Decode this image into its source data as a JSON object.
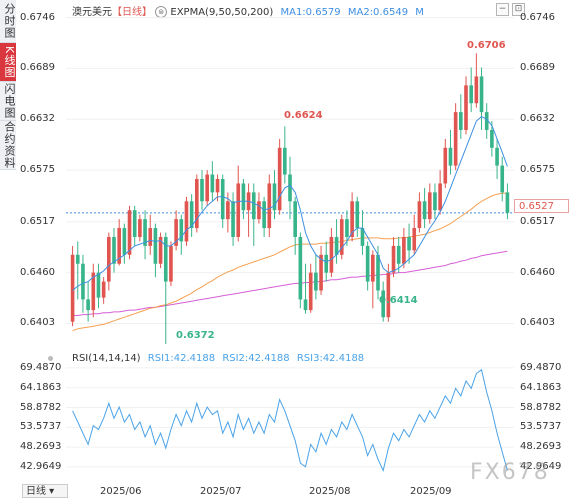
{
  "side_tabs": [
    "分时图",
    "K线图",
    "闪电图",
    "合约资料"
  ],
  "legend": {
    "symbol": "澳元美元",
    "period_tag": "【日线】",
    "ema_label": "EXPMA(9,50,50,200)",
    "ma1": "MA1:0.6579",
    "ma2": "MA2:0.6549",
    "m": "M",
    "rsi_label": "RSI(14,14,14)",
    "rsi1": "RSI1:42.4188",
    "rsi2": "RSI2:42.4188",
    "rsi3": "RSI3:42.4188"
  },
  "price_axis": [
    "0.6746",
    "0.6689",
    "0.6632",
    "0.6575",
    "0.6517",
    "0.6460",
    "0.6403"
  ],
  "rsi_axis": [
    "69.4870",
    "64.1863",
    "58.8782",
    "53.5737",
    "48.2693",
    "42.9649"
  ],
  "x_axis": [
    "2025/06",
    "2025/07",
    "2025/08",
    "2025/09"
  ],
  "current_price": "0.6527",
  "annotations": {
    "high": "0.6706",
    "mid_high": "0.6624",
    "low": "0.6372",
    "low2": "0.6414"
  },
  "period_button": "日线 ▾",
  "watermark": "FX678",
  "colors": {
    "up": "#e0554f",
    "down": "#38b48b",
    "ma1": "#3e8fe0",
    "ma2": "#f5a050",
    "ma3": "#d65fd6",
    "rsi": "#4aa3e8"
  },
  "chart_data": {
    "type": "candlestick",
    "ylim": [
      0.638,
      0.675
    ],
    "rsi_ylim": [
      40,
      70
    ],
    "candles": [
      [
        0.6405,
        0.648,
        0.64,
        0.649
      ],
      [
        0.648,
        0.647,
        0.643,
        0.6495
      ],
      [
        0.647,
        0.643,
        0.6415,
        0.648
      ],
      [
        0.643,
        0.6418,
        0.6405,
        0.645
      ],
      [
        0.6418,
        0.646,
        0.641,
        0.647
      ],
      [
        0.646,
        0.6432,
        0.642,
        0.647
      ],
      [
        0.6432,
        0.645,
        0.6425,
        0.6455
      ],
      [
        0.645,
        0.65,
        0.644,
        0.6505
      ],
      [
        0.65,
        0.647,
        0.646,
        0.651
      ],
      [
        0.647,
        0.651,
        0.6468,
        0.652
      ],
      [
        0.651,
        0.648,
        0.647,
        0.6515
      ],
      [
        0.648,
        0.653,
        0.6475,
        0.6535
      ],
      [
        0.653,
        0.65,
        0.649,
        0.6535
      ],
      [
        0.65,
        0.652,
        0.6495,
        0.6525
      ],
      [
        0.652,
        0.649,
        0.6475,
        0.653
      ],
      [
        0.649,
        0.651,
        0.648,
        0.6525
      ],
      [
        0.651,
        0.647,
        0.6455,
        0.6515
      ],
      [
        0.647,
        0.65,
        0.6465,
        0.6505
      ],
      [
        0.65,
        0.645,
        0.6372,
        0.6505
      ],
      [
        0.645,
        0.649,
        0.6445,
        0.6495
      ],
      [
        0.649,
        0.652,
        0.6485,
        0.653
      ],
      [
        0.652,
        0.6495,
        0.648,
        0.6525
      ],
      [
        0.6495,
        0.654,
        0.649,
        0.6545
      ],
      [
        0.654,
        0.651,
        0.65,
        0.6548
      ],
      [
        0.651,
        0.6565,
        0.6505,
        0.657
      ],
      [
        0.6565,
        0.654,
        0.653,
        0.6575
      ],
      [
        0.654,
        0.657,
        0.6535,
        0.6575
      ],
      [
        0.657,
        0.655,
        0.654,
        0.6585
      ],
      [
        0.655,
        0.6565,
        0.654,
        0.657
      ],
      [
        0.6565,
        0.652,
        0.651,
        0.657
      ],
      [
        0.652,
        0.654,
        0.6505,
        0.655
      ],
      [
        0.654,
        0.65,
        0.649,
        0.655
      ],
      [
        0.65,
        0.656,
        0.6495,
        0.658
      ],
      [
        0.656,
        0.653,
        0.652,
        0.6565
      ],
      [
        0.653,
        0.655,
        0.65,
        0.656
      ],
      [
        0.655,
        0.652,
        0.649,
        0.656
      ],
      [
        0.652,
        0.654,
        0.6515,
        0.655
      ],
      [
        0.654,
        0.651,
        0.65,
        0.6545
      ],
      [
        0.651,
        0.656,
        0.65,
        0.657
      ],
      [
        0.656,
        0.653,
        0.652,
        0.6575
      ],
      [
        0.653,
        0.66,
        0.6525,
        0.661
      ],
      [
        0.66,
        0.657,
        0.656,
        0.6624
      ],
      [
        0.657,
        0.654,
        0.652,
        0.659
      ],
      [
        0.654,
        0.65,
        0.648,
        0.6545
      ],
      [
        0.65,
        0.643,
        0.642,
        0.6505
      ],
      [
        0.643,
        0.6418,
        0.6414,
        0.647
      ],
      [
        0.6418,
        0.646,
        0.6415,
        0.647
      ],
      [
        0.646,
        0.644,
        0.643,
        0.648
      ],
      [
        0.644,
        0.648,
        0.6435,
        0.649
      ],
      [
        0.648,
        0.646,
        0.645,
        0.6495
      ],
      [
        0.646,
        0.65,
        0.6455,
        0.651
      ],
      [
        0.65,
        0.648,
        0.647,
        0.652
      ],
      [
        0.648,
        0.652,
        0.6475,
        0.6525
      ],
      [
        0.652,
        0.65,
        0.649,
        0.653
      ],
      [
        0.65,
        0.654,
        0.6495,
        0.655
      ],
      [
        0.654,
        0.651,
        0.65,
        0.6545
      ],
      [
        0.651,
        0.649,
        0.648,
        0.653
      ],
      [
        0.649,
        0.645,
        0.644,
        0.6495
      ],
      [
        0.645,
        0.648,
        0.642,
        0.6485
      ],
      [
        0.648,
        0.644,
        0.643,
        0.649
      ],
      [
        0.644,
        0.641,
        0.6405,
        0.645
      ],
      [
        0.641,
        0.646,
        0.6405,
        0.647
      ],
      [
        0.646,
        0.649,
        0.6455,
        0.65
      ],
      [
        0.649,
        0.647,
        0.646,
        0.65
      ],
      [
        0.647,
        0.65,
        0.6465,
        0.651
      ],
      [
        0.65,
        0.6485,
        0.647,
        0.6515
      ],
      [
        0.6485,
        0.651,
        0.648,
        0.6525
      ],
      [
        0.651,
        0.654,
        0.6505,
        0.655
      ],
      [
        0.654,
        0.652,
        0.651,
        0.6555
      ],
      [
        0.652,
        0.655,
        0.6515,
        0.656
      ],
      [
        0.655,
        0.653,
        0.652,
        0.656
      ],
      [
        0.653,
        0.656,
        0.6525,
        0.6575
      ],
      [
        0.656,
        0.66,
        0.6555,
        0.661
      ],
      [
        0.66,
        0.658,
        0.657,
        0.662
      ],
      [
        0.658,
        0.664,
        0.6575,
        0.665
      ],
      [
        0.664,
        0.662,
        0.661,
        0.666
      ],
      [
        0.662,
        0.667,
        0.6615,
        0.668
      ],
      [
        0.667,
        0.665,
        0.664,
        0.669
      ],
      [
        0.665,
        0.668,
        0.6645,
        0.6706
      ],
      [
        0.668,
        0.664,
        0.662,
        0.669
      ],
      [
        0.664,
        0.662,
        0.661,
        0.665
      ],
      [
        0.662,
        0.66,
        0.659,
        0.663
      ],
      [
        0.66,
        0.658,
        0.6565,
        0.661
      ],
      [
        0.658,
        0.655,
        0.654,
        0.659
      ],
      [
        0.655,
        0.6527,
        0.652,
        0.656
      ]
    ],
    "ma1": [
      0.644,
      0.6445,
      0.6448,
      0.645,
      0.6455,
      0.6458,
      0.6462,
      0.6468,
      0.6472,
      0.6476,
      0.648,
      0.6485,
      0.649,
      0.6492,
      0.6494,
      0.6496,
      0.6495,
      0.6496,
      0.649,
      0.649,
      0.6495,
      0.65,
      0.6508,
      0.6512,
      0.652,
      0.6528,
      0.6535,
      0.654,
      0.6545,
      0.6545,
      0.6543,
      0.6538,
      0.654,
      0.654,
      0.654,
      0.6538,
      0.6535,
      0.653,
      0.6532,
      0.6535,
      0.6545,
      0.6555,
      0.6558,
      0.655,
      0.653,
      0.6505,
      0.649,
      0.648,
      0.6475,
      0.6472,
      0.6475,
      0.648,
      0.6488,
      0.6495,
      0.6505,
      0.651,
      0.651,
      0.65,
      0.649,
      0.648,
      0.6465,
      0.646,
      0.6462,
      0.6465,
      0.647,
      0.6475,
      0.648,
      0.649,
      0.65,
      0.651,
      0.6518,
      0.6528,
      0.654,
      0.6555,
      0.657,
      0.6585,
      0.66,
      0.6615,
      0.663,
      0.6635,
      0.6632,
      0.6625,
      0.661,
      0.6595,
      0.6579
    ],
    "ma2": [
      0.6395,
      0.6397,
      0.6398,
      0.6399,
      0.64,
      0.6401,
      0.6402,
      0.6404,
      0.6406,
      0.6408,
      0.641,
      0.6412,
      0.6414,
      0.6416,
      0.6418,
      0.642,
      0.6421,
      0.6423,
      0.6424,
      0.6426,
      0.6428,
      0.6431,
      0.6434,
      0.6437,
      0.6441,
      0.6444,
      0.6448,
      0.6451,
      0.6455,
      0.6458,
      0.6461,
      0.6463,
      0.6466,
      0.6468,
      0.647,
      0.6472,
      0.6474,
      0.6476,
      0.6478,
      0.648,
      0.6483,
      0.6486,
      0.6489,
      0.6491,
      0.6492,
      0.6492,
      0.6492,
      0.6492,
      0.6493,
      0.6493,
      0.6494,
      0.6494,
      0.6495,
      0.6496,
      0.6497,
      0.6498,
      0.6499,
      0.6499,
      0.6499,
      0.6499,
      0.6498,
      0.6498,
      0.6498,
      0.6499,
      0.6499,
      0.65,
      0.6501,
      0.6502,
      0.6503,
      0.6505,
      0.6507,
      0.6509,
      0.6512,
      0.6515,
      0.6519,
      0.6523,
      0.6527,
      0.6531,
      0.6536,
      0.654,
      0.6543,
      0.6546,
      0.6548,
      0.6549,
      0.6549
    ],
    "ma3": [
      0.6412,
      0.6412,
      0.6413,
      0.6413,
      0.6414,
      0.6414,
      0.6415,
      0.6415,
      0.6416,
      0.6416,
      0.6417,
      0.6418,
      0.6418,
      0.6419,
      0.642,
      0.6421,
      0.6421,
      0.6422,
      0.6423,
      0.6424,
      0.6425,
      0.6426,
      0.6427,
      0.6428,
      0.6429,
      0.643,
      0.6431,
      0.6432,
      0.6433,
      0.6434,
      0.6435,
      0.6436,
      0.6437,
      0.6438,
      0.6439,
      0.644,
      0.6441,
      0.6442,
      0.6443,
      0.6444,
      0.6445,
      0.6446,
      0.6447,
      0.6448,
      0.6448,
      0.6449,
      0.6449,
      0.645,
      0.645,
      0.6451,
      0.6452,
      0.6452,
      0.6453,
      0.6454,
      0.6455,
      0.6455,
      0.6456,
      0.6456,
      0.6457,
      0.6457,
      0.6458,
      0.6458,
      0.6459,
      0.646,
      0.646,
      0.6461,
      0.6462,
      0.6463,
      0.6464,
      0.6465,
      0.6466,
      0.6467,
      0.6468,
      0.647,
      0.6471,
      0.6473,
      0.6474,
      0.6476,
      0.6477,
      0.6479,
      0.648,
      0.6481,
      0.6482,
      0.6483,
      0.6484
    ],
    "rsi": [
      58,
      55,
      52,
      49,
      54,
      53,
      56,
      60,
      56,
      59,
      55,
      57,
      53,
      55,
      51,
      54,
      49,
      52,
      48,
      53,
      57,
      54,
      58,
      55,
      60,
      56,
      59,
      57,
      58,
      52,
      55,
      51,
      57,
      53,
      56,
      52,
      55,
      52,
      57,
      55,
      61,
      58,
      54,
      50,
      44,
      43,
      49,
      47,
      52,
      49,
      53,
      51,
      55,
      53,
      57,
      54,
      51,
      46,
      49,
      45,
      42,
      48,
      52,
      50,
      53,
      51,
      54,
      57,
      55,
      58,
      56,
      59,
      62,
      60,
      64,
      62,
      66,
      64,
      68,
      69,
      63,
      58,
      52,
      47,
      42
    ]
  }
}
